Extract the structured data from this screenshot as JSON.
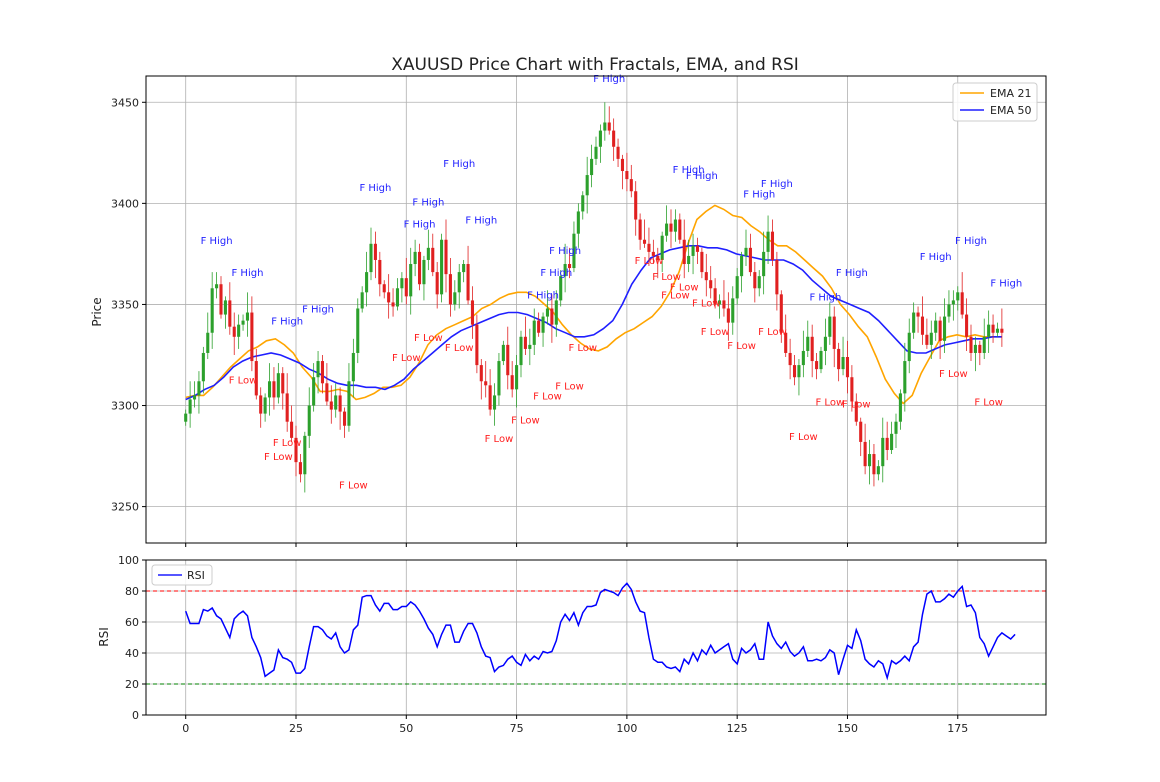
{
  "chart_data": [
    {
      "type": "candlestick",
      "title": "XAUUSD Price Chart with Fractals, EMA, and RSI",
      "ylabel": "Price",
      "xlim": [
        -9,
        195
      ],
      "ylim": [
        3232,
        3463
      ],
      "yticks": [
        3250,
        3300,
        3350,
        3400,
        3450
      ],
      "grid": true,
      "legend_position": "top-right",
      "legend": [
        {
          "name": "EMA 21",
          "color": "#FFA500"
        },
        {
          "name": "EMA 50",
          "color": "#0000FF"
        }
      ],
      "colors": {
        "up": "#2CA02C",
        "down": "#E02020",
        "ema21": "#FFA500",
        "ema50": "#1F1FFF",
        "fractal_high": "#1F1FFF",
        "fractal_low": "#FF2020"
      },
      "closes": [
        3296,
        3303,
        3305,
        3312,
        3326,
        3336,
        3358,
        3360,
        3345,
        3352,
        3339,
        3334,
        3340,
        3342,
        3346,
        3322,
        3305,
        3296,
        3304,
        3312,
        3304,
        3316,
        3306,
        3292,
        3284,
        3272,
        3266,
        3285,
        3300,
        3314,
        3322,
        3311,
        3302,
        3298,
        3305,
        3297,
        3290,
        3312,
        3326,
        3348,
        3356,
        3366,
        3380,
        3372,
        3360,
        3356,
        3351,
        3349,
        3358,
        3363,
        3354,
        3370,
        3376,
        3360,
        3372,
        3378,
        3366,
        3355,
        3382,
        3365,
        3350,
        3356,
        3366,
        3370,
        3352,
        3340,
        3320,
        3312,
        3310,
        3298,
        3305,
        3322,
        3330,
        3315,
        3308,
        3320,
        3334,
        3328,
        3330,
        3342,
        3336,
        3344,
        3348,
        3340,
        3352,
        3364,
        3370,
        3368,
        3385,
        3396,
        3404,
        3414,
        3422,
        3428,
        3436,
        3440,
        3436,
        3428,
        3422,
        3416,
        3412,
        3406,
        3392,
        3382,
        3380,
        3376,
        3374,
        3372,
        3384,
        3390,
        3386,
        3392,
        3382,
        3370,
        3374,
        3379,
        3376,
        3366,
        3362,
        3358,
        3350,
        3352,
        3348,
        3341,
        3353,
        3364,
        3374,
        3378,
        3366,
        3358,
        3364,
        3376,
        3386,
        3372,
        3355,
        3336,
        3326,
        3320,
        3314,
        3320,
        3327,
        3334,
        3322,
        3318,
        3327,
        3334,
        3344,
        3328,
        3318,
        3324,
        3314,
        3302,
        3292,
        3282,
        3270,
        3276,
        3266,
        3270,
        3284,
        3278,
        3286,
        3292,
        3306,
        3322,
        3336,
        3346,
        3344,
        3335,
        3330,
        3336,
        3342,
        3332,
        3344,
        3350,
        3352,
        3356,
        3345,
        3334,
        3326,
        3330,
        3326,
        3334,
        3340,
        3336,
        3338,
        3336
      ],
      "ema_21": [
        3304,
        3305,
        3305,
        3309,
        3314,
        3319,
        3323,
        3327,
        3329,
        3332,
        3333,
        3330,
        3326,
        3319,
        3314,
        3307,
        3307,
        3308,
        3307,
        3303,
        3304,
        3306,
        3309,
        3309,
        3310,
        3314,
        3321,
        3330,
        3335,
        3338,
        3340,
        3342,
        3344,
        3348,
        3350,
        3353,
        3355,
        3356,
        3356,
        3354,
        3350,
        3346,
        3340,
        3335,
        3331,
        3328,
        3327,
        3329,
        3333,
        3336,
        3338,
        3341,
        3344,
        3349,
        3356,
        3366,
        3380,
        3392,
        3396,
        3399,
        3397,
        3394,
        3393,
        3389,
        3386,
        3382,
        3379,
        3379,
        3376,
        3372,
        3368,
        3364,
        3358,
        3350,
        3345,
        3339,
        3334,
        3324,
        3313,
        3306,
        3301,
        3305,
        3316,
        3324,
        3332,
        3334,
        3335,
        3334,
        3335,
        3334,
        3334,
        3334
      ],
      "ema_50": [
        3303,
        3305,
        3308,
        3310,
        3314,
        3319,
        3322,
        3324,
        3325,
        3326,
        3325,
        3323,
        3321,
        3318,
        3316,
        3313,
        3311,
        3310,
        3310,
        3309,
        3309,
        3308,
        3310,
        3313,
        3318,
        3322,
        3326,
        3330,
        3334,
        3337,
        3339,
        3341,
        3343,
        3345,
        3346,
        3346,
        3345,
        3343,
        3341,
        3338,
        3336,
        3334,
        3334,
        3335,
        3338,
        3342,
        3350,
        3360,
        3367,
        3373,
        3375,
        3377,
        3378,
        3379,
        3379,
        3378,
        3378,
        3377,
        3375,
        3374,
        3373,
        3372,
        3372,
        3372,
        3370,
        3367,
        3362,
        3358,
        3354,
        3352,
        3350,
        3348,
        3346,
        3342,
        3337,
        3332,
        3327,
        3326,
        3326,
        3328,
        3330,
        3331,
        3332,
        3333,
        3333,
        3334,
        3334
      ],
      "fractals_high": [
        {
          "x": 7,
          "y": 3380,
          "label": "F High"
        },
        {
          "x": 14,
          "y": 3364,
          "label": "F High"
        },
        {
          "x": 23,
          "y": 3340,
          "label": "F High"
        },
        {
          "x": 30,
          "y": 3346,
          "label": "F High"
        },
        {
          "x": 43,
          "y": 3406,
          "label": "F High"
        },
        {
          "x": 53,
          "y": 3388,
          "label": "F High"
        },
        {
          "x": 55,
          "y": 3399,
          "label": "F High"
        },
        {
          "x": 62,
          "y": 3418,
          "label": "F High"
        },
        {
          "x": 67,
          "y": 3390,
          "label": "F High"
        },
        {
          "x": 81,
          "y": 3353,
          "label": "F High"
        },
        {
          "x": 84,
          "y": 3364,
          "label": "F High"
        },
        {
          "x": 86,
          "y": 3375,
          "label": "F High"
        },
        {
          "x": 96,
          "y": 3460,
          "label": "F High"
        },
        {
          "x": 114,
          "y": 3415,
          "label": "F High"
        },
        {
          "x": 117,
          "y": 3412,
          "label": "F High"
        },
        {
          "x": 130,
          "y": 3403,
          "label": "F High"
        },
        {
          "x": 134,
          "y": 3408,
          "label": "F High"
        },
        {
          "x": 145,
          "y": 3352,
          "label": "F High"
        },
        {
          "x": 151,
          "y": 3364,
          "label": "F High"
        },
        {
          "x": 170,
          "y": 3372,
          "label": "F High"
        },
        {
          "x": 178,
          "y": 3380,
          "label": "F High"
        },
        {
          "x": 186,
          "y": 3359,
          "label": "F High"
        }
      ],
      "fractals_low": [
        {
          "x": 13,
          "y": 3311,
          "label": "F Low"
        },
        {
          "x": 21,
          "y": 3273,
          "label": "F Low"
        },
        {
          "x": 23,
          "y": 3280,
          "label": "F Low"
        },
        {
          "x": 38,
          "y": 3259,
          "label": "F Low"
        },
        {
          "x": 50,
          "y": 3322,
          "label": "F Low"
        },
        {
          "x": 55,
          "y": 3332,
          "label": "F Low"
        },
        {
          "x": 62,
          "y": 3327,
          "label": "F Low"
        },
        {
          "x": 71,
          "y": 3282,
          "label": "F Low"
        },
        {
          "x": 77,
          "y": 3291,
          "label": "F Low"
        },
        {
          "x": 82,
          "y": 3303,
          "label": "F Low"
        },
        {
          "x": 87,
          "y": 3308,
          "label": "F Low"
        },
        {
          "x": 90,
          "y": 3327,
          "label": "F Low"
        },
        {
          "x": 105,
          "y": 3370,
          "label": "F Low"
        },
        {
          "x": 109,
          "y": 3362,
          "label": "F Low"
        },
        {
          "x": 111,
          "y": 3353,
          "label": "F Low"
        },
        {
          "x": 113,
          "y": 3357,
          "label": "F Low"
        },
        {
          "x": 118,
          "y": 3349,
          "label": "F Low"
        },
        {
          "x": 120,
          "y": 3335,
          "label": "F Low"
        },
        {
          "x": 126,
          "y": 3328,
          "label": "F Low"
        },
        {
          "x": 133,
          "y": 3335,
          "label": "F Low"
        },
        {
          "x": 140,
          "y": 3283,
          "label": "F Low"
        },
        {
          "x": 146,
          "y": 3300,
          "label": "F Low"
        },
        {
          "x": 152,
          "y": 3299,
          "label": "F Low"
        },
        {
          "x": 174,
          "y": 3314,
          "label": "F Low"
        },
        {
          "x": 182,
          "y": 3300,
          "label": "F Low"
        }
      ]
    },
    {
      "type": "line",
      "ylabel": "RSI",
      "xlim": [
        -9,
        195
      ],
      "ylim": [
        0,
        100
      ],
      "xticks": [
        0,
        25,
        50,
        75,
        100,
        125,
        150,
        175
      ],
      "yticks": [
        0,
        20,
        40,
        60,
        80,
        100
      ],
      "grid": true,
      "legend_position": "top-left",
      "levels": [
        {
          "value": 80,
          "color": "#FF0000"
        },
        {
          "value": 20,
          "color": "#008000"
        }
      ],
      "series": [
        {
          "name": "RSI",
          "color": "#0000FF",
          "values": [
            67,
            59,
            59,
            59,
            68,
            67,
            69,
            64,
            62,
            56,
            50,
            62,
            65,
            67,
            64,
            50,
            44,
            37,
            25,
            27,
            29,
            42,
            37,
            36,
            34,
            27,
            27,
            30,
            44,
            57,
            57,
            55,
            51,
            49,
            53,
            44,
            40,
            42,
            55,
            58,
            76,
            77,
            77,
            71,
            67,
            72,
            72,
            68,
            68,
            70,
            70,
            73,
            71,
            67,
            62,
            56,
            52,
            44,
            52,
            58,
            58,
            47,
            47,
            54,
            59,
            59,
            53,
            44,
            38,
            37,
            28,
            31,
            32,
            36,
            38,
            34,
            32,
            39,
            35,
            38,
            36,
            41,
            40,
            41,
            48,
            60,
            65,
            61,
            66,
            58,
            66,
            70,
            70,
            71,
            79,
            81,
            80,
            79,
            77,
            82,
            85,
            81,
            73,
            67,
            66,
            50,
            36,
            34,
            34,
            31,
            30,
            31,
            28,
            36,
            33,
            40,
            35,
            42,
            39,
            45,
            40,
            42,
            44,
            46,
            36,
            33,
            43,
            40,
            42,
            46,
            36,
            36,
            60,
            51,
            46,
            43,
            47,
            41,
            38,
            40,
            44,
            35,
            35,
            36,
            35,
            37,
            42,
            40,
            26,
            36,
            45,
            43,
            55,
            48,
            36,
            33,
            31,
            35,
            33,
            24,
            35,
            33,
            35,
            38,
            35,
            44,
            47,
            65,
            78,
            80,
            73,
            73,
            75,
            78,
            76,
            80,
            83,
            70,
            71,
            66,
            50,
            46,
            38,
            44,
            50,
            53,
            51,
            49,
            52
          ]
        }
      ]
    }
  ]
}
